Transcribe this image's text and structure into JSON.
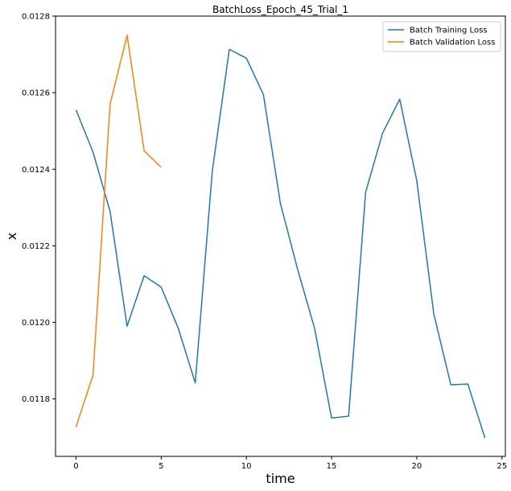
{
  "chart_data": {
    "type": "line",
    "title": "BatchLoss_Epoch_45_Trial_1",
    "xlabel": "time",
    "ylabel": "x",
    "xlim": [
      -1.2,
      25.2
    ],
    "ylim": [
      0.01165,
      0.0128
    ],
    "xticks": [
      0,
      5,
      10,
      15,
      20,
      25
    ],
    "yticks": [
      0.0118,
      0.012,
      0.0122,
      0.0124,
      0.0126,
      0.0128
    ],
    "ytick_labels": [
      "0.0118",
      "0.0120",
      "0.0122",
      "0.0124",
      "0.0126",
      "0.0128"
    ],
    "grid": false,
    "legend": "top-right",
    "series": [
      {
        "name": "Batch Training Loss",
        "color": "#1f77b4",
        "x": [
          0,
          1,
          2,
          3,
          4,
          5,
          6,
          7,
          8,
          9,
          10,
          11,
          12,
          13,
          14,
          15,
          16,
          17,
          18,
          19,
          20,
          21,
          22,
          23,
          24
        ],
        "y": [
          0.012555,
          0.012445,
          0.01229,
          0.01199,
          0.012122,
          0.012092,
          0.011985,
          0.011842,
          0.012395,
          0.012713,
          0.01269,
          0.012595,
          0.01231,
          0.01214,
          0.011985,
          0.01175,
          0.011755,
          0.01234,
          0.012495,
          0.012583,
          0.01237,
          0.012022,
          0.011837,
          0.011839,
          0.011698
        ]
      },
      {
        "name": "Batch Validation Loss",
        "color": "#ff7f0e",
        "x": [
          0,
          1,
          2,
          3,
          4,
          5
        ],
        "y": [
          0.011727,
          0.011862,
          0.01257,
          0.01275,
          0.012448,
          0.012405
        ]
      }
    ]
  }
}
